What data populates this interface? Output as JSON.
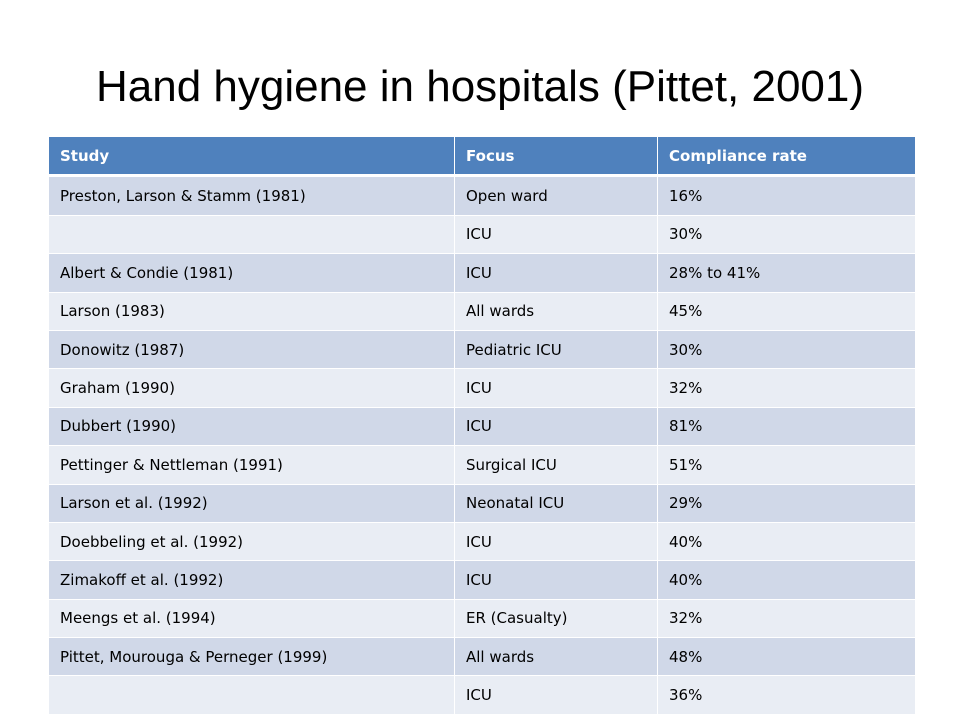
{
  "slide": {
    "title": "Hand hygiene in hospitals (Pittet, 2001)"
  },
  "table": {
    "headers": [
      "Study",
      "Focus",
      "Compliance rate"
    ],
    "rows": [
      [
        "Preston, Larson & Stamm (1981)",
        "Open ward",
        "16%"
      ],
      [
        "",
        "ICU",
        "30%"
      ],
      [
        "Albert & Condie (1981)",
        "ICU",
        "28% to 41%"
      ],
      [
        "Larson (1983)",
        "All wards",
        "45%"
      ],
      [
        "Donowitz (1987)",
        "Pediatric ICU",
        "30%"
      ],
      [
        "Graham (1990)",
        "ICU",
        "32%"
      ],
      [
        "Dubbert (1990)",
        "ICU",
        "81%"
      ],
      [
        "Pettinger & Nettleman (1991)",
        "Surgical ICU",
        "51%"
      ],
      [
        "Larson et al. (1992)",
        "Neonatal ICU",
        "29%"
      ],
      [
        "Doebbeling et al. (1992)",
        "ICU",
        "40%"
      ],
      [
        "Zimakoff et al. (1992)",
        "ICU",
        "40%"
      ],
      [
        "Meengs et al. (1994)",
        "ER (Casualty)",
        "32%"
      ],
      [
        "Pittet, Mourouga & Perneger  (1999)",
        "All wards",
        "48%"
      ],
      [
        "",
        "ICU",
        "36%"
      ]
    ]
  },
  "colors": {
    "header": "#4f81bd",
    "row_odd": "#d0d8e8",
    "row_even": "#e9edf4"
  }
}
